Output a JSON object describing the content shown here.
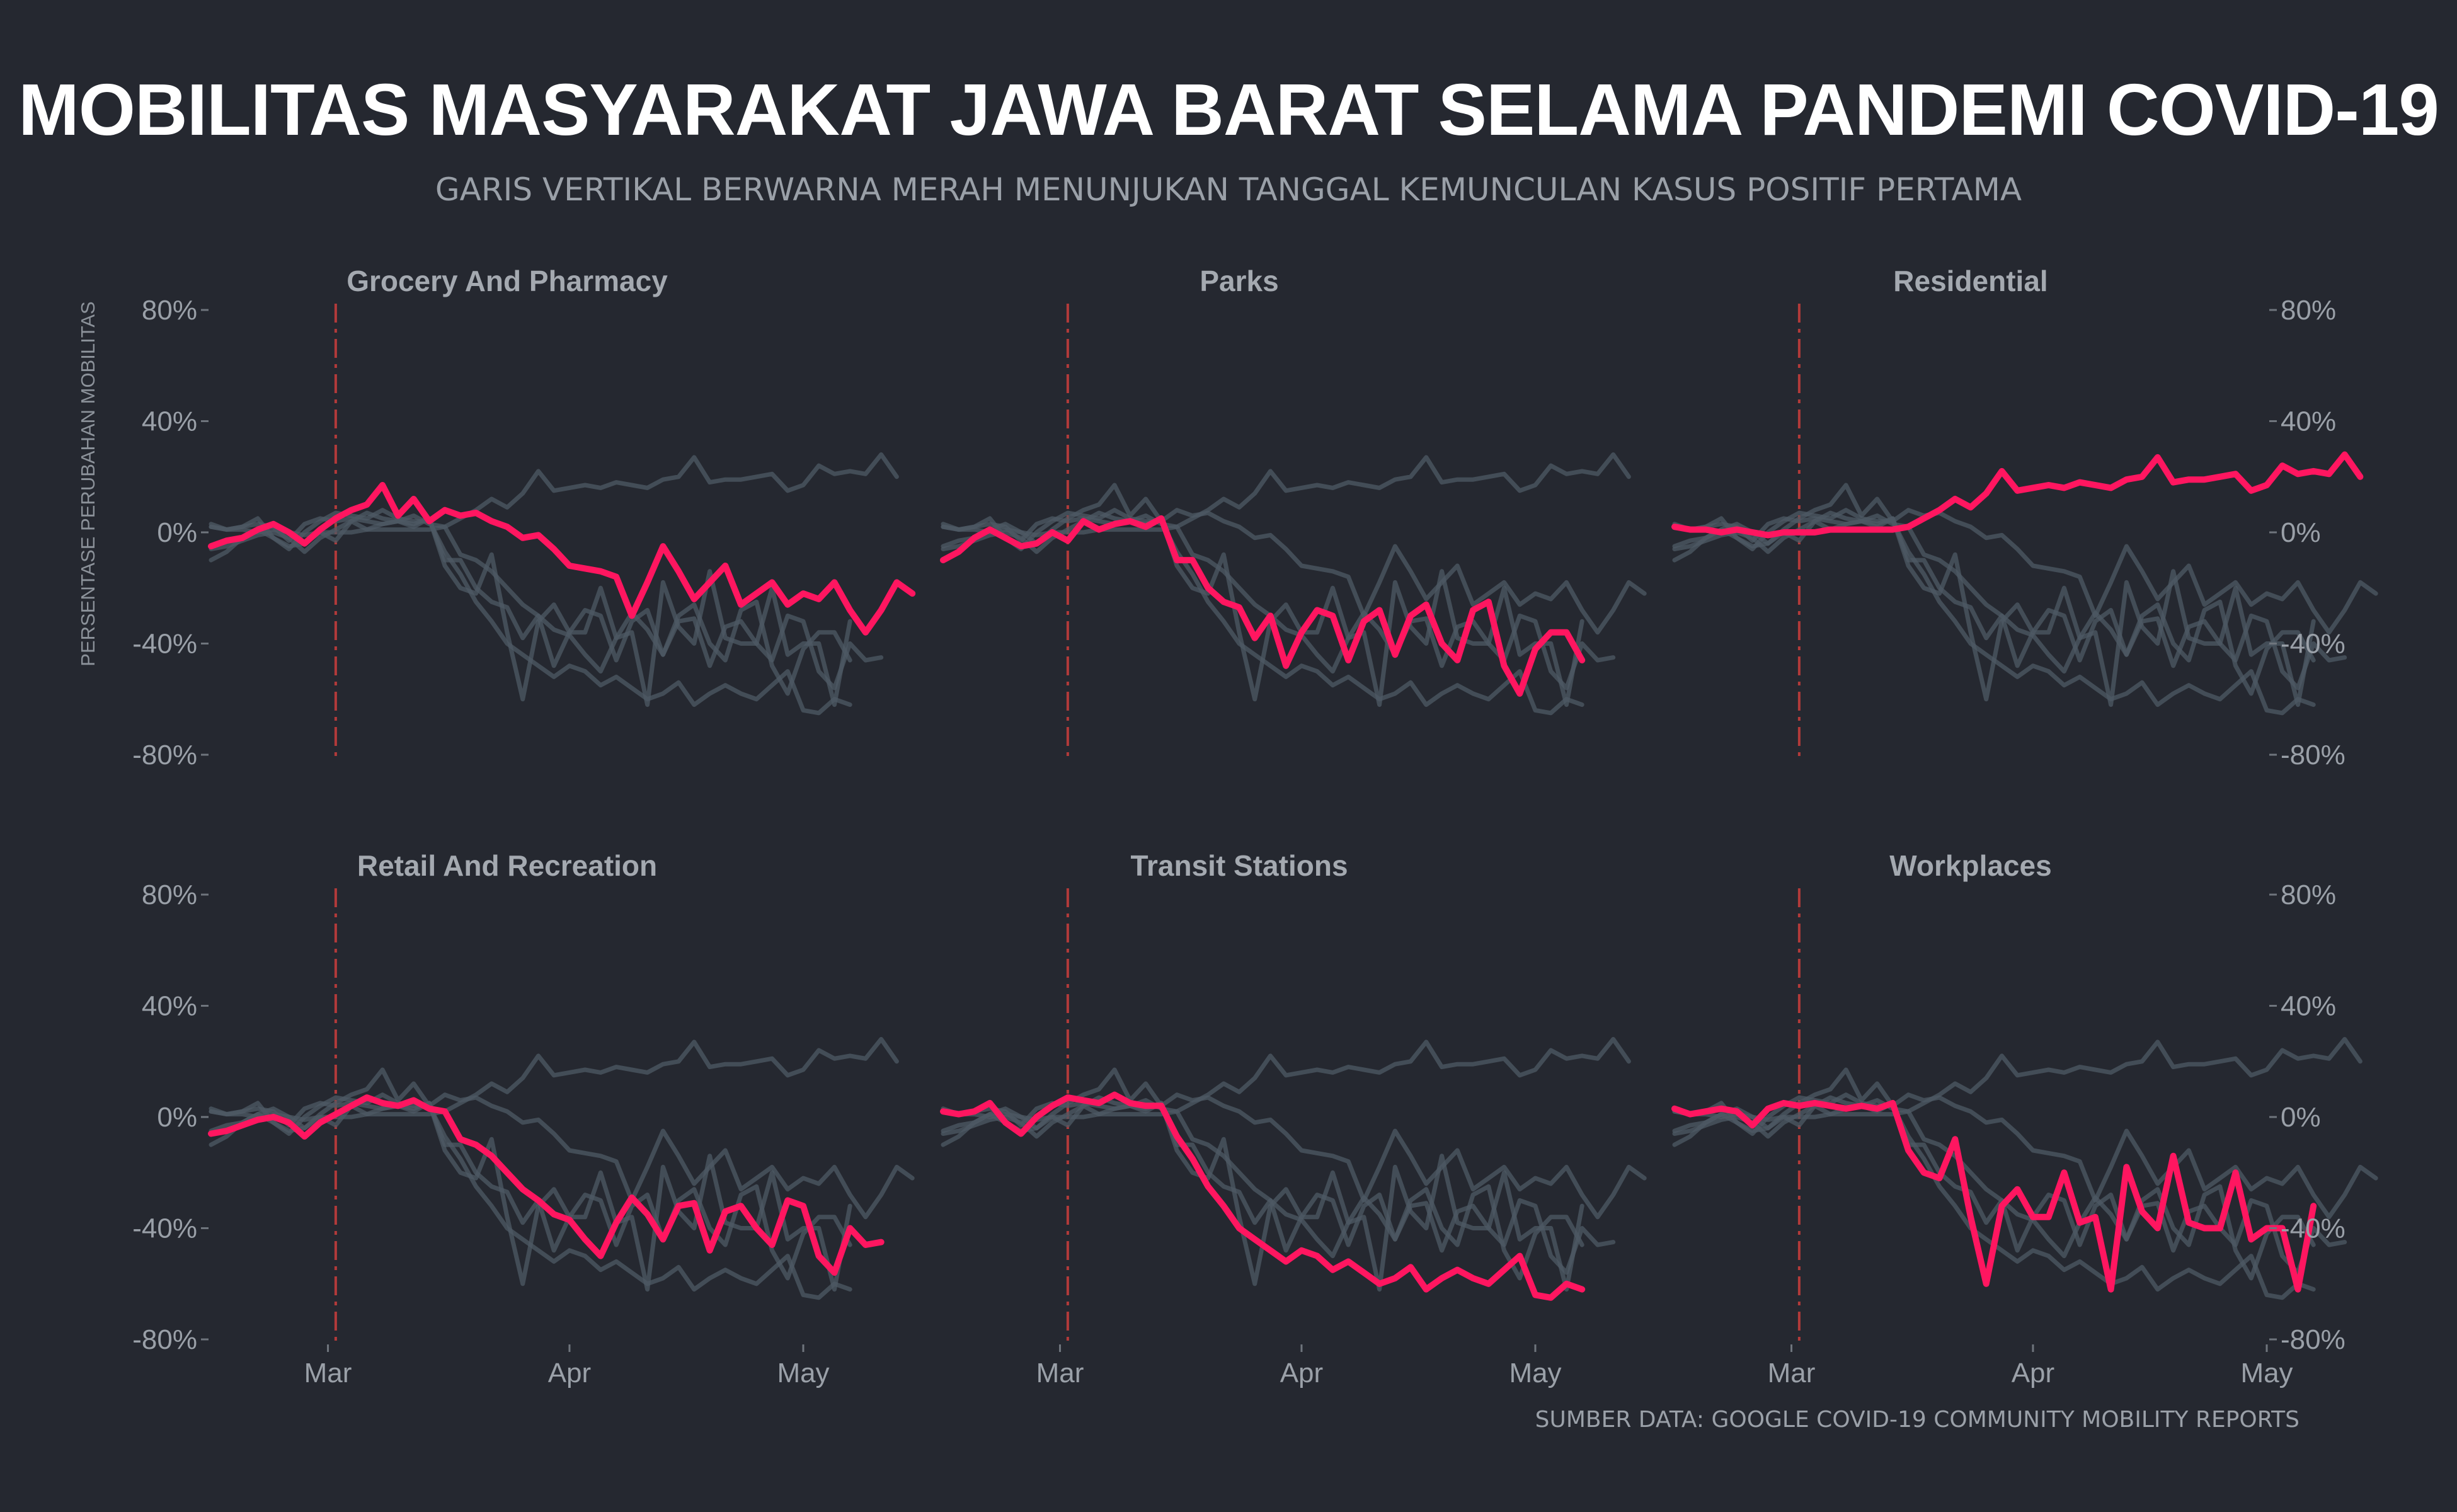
{
  "title": "MOBILITAS MASYARAKAT JAWA BARAT SELAMA PANDEMI COVID-19",
  "subtitle": "GARIS VERTIKAL BERWARNA MERAH MENUNJUKAN TANGGAL KEMUNCULAN KASUS POSITIF PERTAMA",
  "caption": "SUMBER DATA: GOOGLE COVID-19 COMMUNITY MOBILITY REPORTS",
  "colors": {
    "background": "#252830",
    "highlight": "#ff1660",
    "context": "#4e5a64",
    "marker": "#b23a3a"
  },
  "chart_data": {
    "type": "line",
    "layout": "facet-grid 2x3",
    "x_unit": "date (2020)",
    "x_range": [
      "2020-02-15",
      "2020-05-01"
    ],
    "x_ticks": [
      {
        "label": "Mar",
        "date": "2020-03-01"
      },
      {
        "label": "Apr",
        "date": "2020-04-01"
      },
      {
        "label": "May",
        "date": "2020-05-01"
      }
    ],
    "y_range": [
      -80,
      80
    ],
    "y_ticks": [
      {
        "value": 80,
        "label": "80%"
      },
      {
        "value": 40,
        "label": "40%"
      },
      {
        "value": 0,
        "label": "0%"
      },
      {
        "value": -40,
        "label": "-40%"
      },
      {
        "value": -80,
        "label": "-80%"
      }
    ],
    "ylabel": "PERSENTASE PERUBAHAN MOBILITAS",
    "marker_date": "2020-03-02",
    "grid": false,
    "sample_interval_days": 2,
    "panels": [
      {
        "name": "Grocery And Pharmacy",
        "values": [
          -5,
          -3,
          -2,
          1,
          3,
          0,
          -4,
          1,
          5,
          8,
          10,
          17,
          6,
          12,
          4,
          8,
          6,
          7,
          4,
          2,
          -2,
          -1,
          -6,
          -12,
          -13,
          -14,
          -16,
          -30,
          -18,
          -5,
          -14,
          -24,
          -18,
          -12,
          -26,
          -22,
          -18,
          -26,
          -22,
          -24,
          -18,
          -28,
          -36,
          -28,
          -18,
          -22
        ]
      },
      {
        "name": "Parks",
        "values": [
          -10,
          -7,
          -2,
          1,
          -2,
          -5,
          -4,
          0,
          -3,
          4,
          1,
          3,
          4,
          2,
          5,
          -10,
          -10,
          -20,
          -25,
          -27,
          -38,
          -30,
          -48,
          -36,
          -28,
          -30,
          -46,
          -32,
          -28,
          -44,
          -30,
          -26,
          -40,
          -46,
          -28,
          -25,
          -48,
          -58,
          -42,
          -36,
          -36,
          -46
        ]
      },
      {
        "name": "Residential",
        "values": [
          2,
          1,
          1,
          0,
          1,
          0,
          -1,
          0,
          0,
          0,
          1,
          1,
          1,
          1,
          1,
          2,
          5,
          8,
          12,
          9,
          14,
          22,
          15,
          16,
          17,
          16,
          18,
          17,
          16,
          19,
          20,
          27,
          18,
          19,
          19,
          20,
          21,
          15,
          17,
          24,
          21,
          22,
          21,
          28,
          20
        ]
      },
      {
        "name": "Retail And Recreation",
        "values": [
          -6,
          -5,
          -3,
          -1,
          0,
          -2,
          -7,
          -2,
          1,
          4,
          7,
          5,
          4,
          6,
          3,
          2,
          -8,
          -10,
          -14,
          -20,
          -26,
          -30,
          -35,
          -37,
          -44,
          -50,
          -38,
          -29,
          -35,
          -44,
          -32,
          -31,
          -48,
          -34,
          -32,
          -40,
          -46,
          -30,
          -32,
          -50,
          -56,
          -40,
          -46,
          -45
        ]
      },
      {
        "name": "Transit Stations",
        "values": [
          2,
          1,
          2,
          5,
          -2,
          -6,
          0,
          4,
          7,
          6,
          5,
          8,
          5,
          4,
          4,
          -7,
          -15,
          -25,
          -32,
          -40,
          -44,
          -48,
          -52,
          -48,
          -50,
          -55,
          -52,
          -56,
          -60,
          -58,
          -54,
          -62,
          -58,
          -55,
          -58,
          -60,
          -55,
          -50,
          -64,
          -65,
          -60,
          -62
        ]
      },
      {
        "name": "Workplaces",
        "values": [
          3,
          1,
          2,
          3,
          2,
          -3,
          3,
          5,
          4,
          5,
          4,
          3,
          4,
          3,
          5,
          -12,
          -20,
          -22,
          -8,
          -36,
          -60,
          -32,
          -26,
          -36,
          -36,
          -20,
          -38,
          -36,
          -62,
          -18,
          -34,
          -40,
          -14,
          -38,
          -40,
          -40,
          -20,
          -44,
          -40,
          -40,
          -62,
          -32
        ]
      }
    ]
  }
}
